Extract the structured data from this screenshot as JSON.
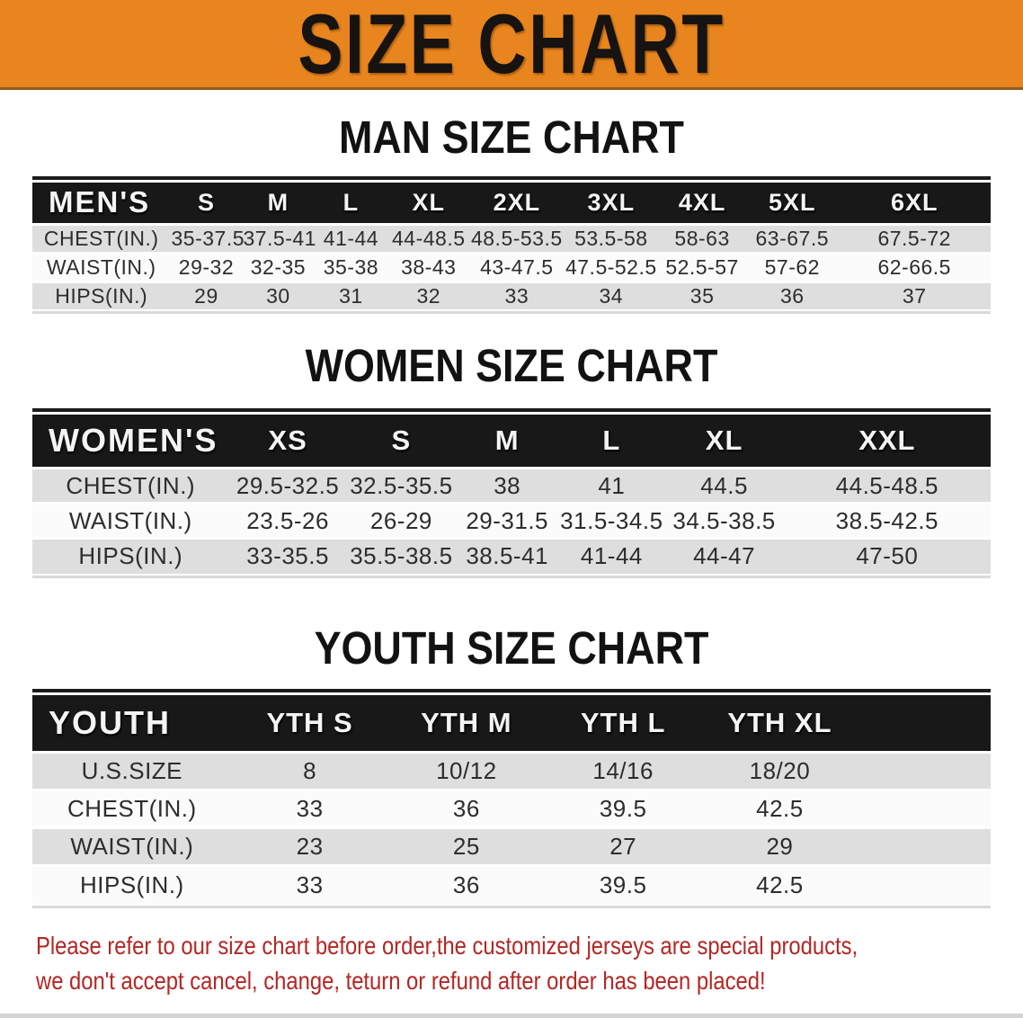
{
  "banner": {
    "title": "SIZE CHART"
  },
  "sections": [
    {
      "title": "MAN SIZE CHART",
      "table": {
        "corner_label": "MEN'S",
        "columns": [
          "S",
          "M",
          "L",
          "XL",
          "2XL",
          "3XL",
          "4XL",
          "5XL",
          "6XL"
        ],
        "rows": [
          {
            "label": "CHEST(IN.)",
            "values": [
              "35-37.5",
              "37.5-41",
              "41-44",
              "44-48.5",
              "48.5-53.5",
              "53.5-58",
              "58-63",
              "63-67.5",
              "67.5-72"
            ]
          },
          {
            "label": "WAIST(IN.)",
            "values": [
              "29-32",
              "32-35",
              "35-38",
              "38-43",
              "43-47.5",
              "47.5-52.5",
              "52.5-57",
              "57-62",
              "62-66.5"
            ]
          },
          {
            "label": "HIPS(IN.)",
            "values": [
              "29",
              "30",
              "31",
              "32",
              "33",
              "34",
              "35",
              "36",
              "37"
            ]
          }
        ]
      }
    },
    {
      "title": "WOMEN SIZE CHART",
      "table": {
        "corner_label": "WOMEN'S",
        "columns": [
          "XS",
          "S",
          "M",
          "L",
          "XL",
          "XXL"
        ],
        "rows": [
          {
            "label": "CHEST(IN.)",
            "values": [
              "29.5-32.5",
              "32.5-35.5",
              "38",
              "41",
              "44.5",
              "44.5-48.5"
            ]
          },
          {
            "label": "WAIST(IN.)",
            "values": [
              "23.5-26",
              "26-29",
              "29-31.5",
              "31.5-34.5",
              "34.5-38.5",
              "38.5-42.5"
            ]
          },
          {
            "label": "HIPS(IN.)",
            "values": [
              "33-35.5",
              "35.5-38.5",
              "38.5-41",
              "41-44",
              "44-47",
              "47-50"
            ]
          }
        ]
      }
    },
    {
      "title": "YOUTH SIZE CHART",
      "table": {
        "corner_label": "YOUTH",
        "columns": [
          "YTH S",
          "YTH M",
          "YTH L",
          "YTH XL"
        ],
        "rows": [
          {
            "label": "U.S.SIZE",
            "values": [
              "8",
              "10/12",
              "14/16",
              "18/20"
            ]
          },
          {
            "label": "CHEST(IN.)",
            "values": [
              "33",
              "36",
              "39.5",
              "42.5"
            ]
          },
          {
            "label": "WAIST(IN.)",
            "values": [
              "23",
              "25",
              "27",
              "29"
            ]
          },
          {
            "label": "HIPS(IN.)",
            "values": [
              "33",
              "36",
              "39.5",
              "42.5"
            ]
          }
        ]
      }
    }
  ],
  "footer": {
    "line1": "Please refer to our size chart before order,the customized jerseys are special products,",
    "line2": "we don't accept cancel, change, teturn or refund after order has been placed!"
  },
  "colors": {
    "banner_bg": "#E8851E",
    "header_bar": "#181818",
    "row_gray": "#dedede",
    "row_white": "#fbfbfb",
    "footer_red": "#B22724"
  }
}
